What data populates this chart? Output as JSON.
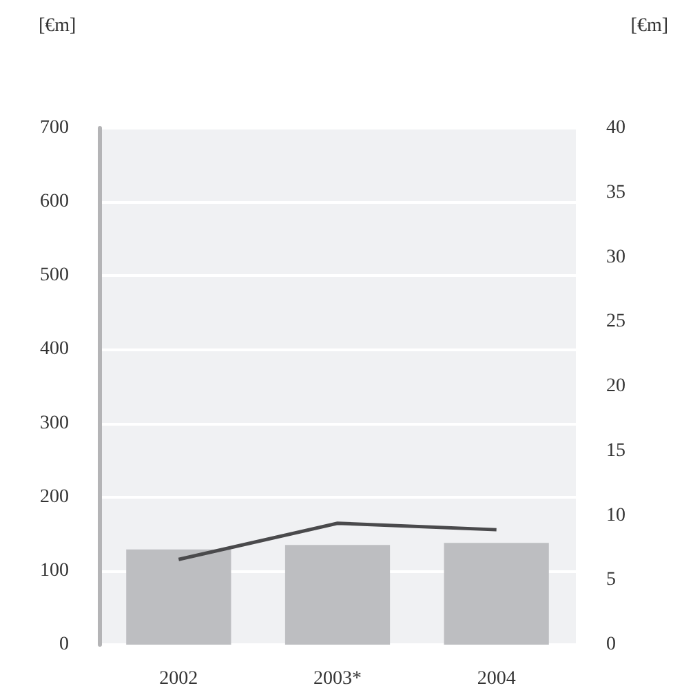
{
  "chart_data": {
    "type": "bar",
    "ylabel": "[€m]",
    "y2label": "[€m]",
    "categories": [
      "2002",
      "2003*",
      "2004"
    ],
    "series": [
      {
        "color": "#bdbec1",
        "values": [
          129,
          135,
          138
        ]
      },
      {
        "type": "line",
        "axis": "y2",
        "color": "#4a4a4c",
        "values": [
          6.6,
          9.4,
          8.9
        ]
      }
    ],
    "ylim": [
      0,
      700
    ],
    "yticks": [
      0,
      100,
      200,
      300,
      400,
      500,
      600,
      700
    ],
    "y2lim": [
      0,
      40
    ],
    "y2ticks": [
      0,
      5,
      10,
      15,
      20,
      25,
      30,
      35,
      40
    ],
    "grid": "y",
    "marker": "none",
    "line_style": "solid"
  }
}
